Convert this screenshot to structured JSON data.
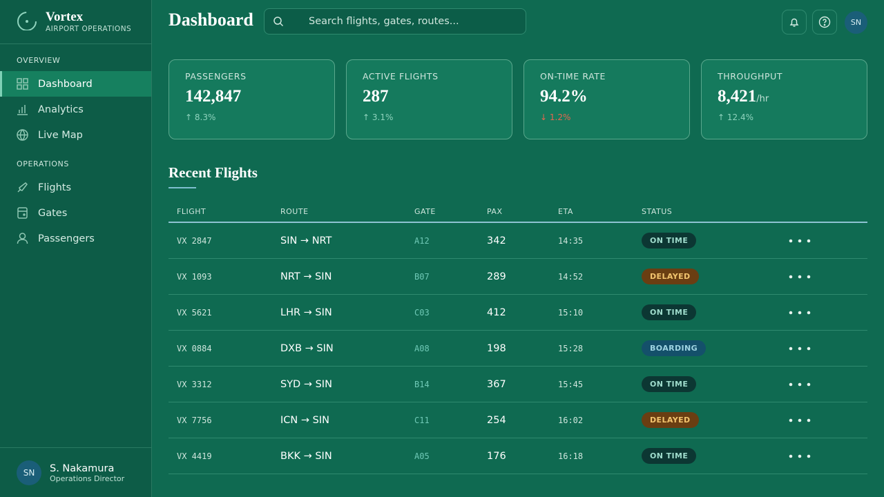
{
  "sidebar": {
    "brand": "Vortex",
    "brand_subtitle": "AIRPORT OPERATIONS",
    "sections": [
      {
        "title": "OVERVIEW",
        "items": [
          "Dashboard",
          "Analytics",
          "Live Map"
        ]
      },
      {
        "title": "OPERATIONS",
        "items": [
          "Flights",
          "Gates",
          "Passengers"
        ]
      }
    ],
    "user": {
      "initials": "SN",
      "name": "S. Nakamura",
      "role": "Operations Director"
    }
  },
  "header": {
    "title": "Dashboard",
    "search_placeholder": "Search flights, gates, routes...",
    "user_initials": "SN"
  },
  "stats": [
    {
      "label": "PASSENGERS",
      "value": "142,847",
      "change": "↑ 8.3%",
      "change_color": "#8fd3bd"
    },
    {
      "label": "ACTIVE FLIGHTS",
      "value": "287",
      "change": "↑ 3.1%",
      "change_color": "#8fd3bd"
    },
    {
      "label": "ON-TIME RATE",
      "value": "94.2%",
      "change": "↓ 1.2%",
      "change_color": "#e8664f"
    },
    {
      "label": "THROUGHPUT",
      "value": "8,421",
      "unit": "/hr",
      "change": "↑ 12.4%",
      "change_color": "#8fd3bd"
    }
  ],
  "flights": {
    "title": "Recent Flights",
    "columns": [
      "FLIGHT",
      "ROUTE",
      "GATE",
      "PAX",
      "ETA",
      "STATUS"
    ],
    "rows": [
      {
        "flight": "VX 2847",
        "route": "SIN → NRT",
        "gate": "A12",
        "pax": 342,
        "eta": "14:35",
        "status": "ON TIME",
        "status_bg": "#0c3733",
        "status_fg": "#9fdccc"
      },
      {
        "flight": "VX 1093",
        "route": "NRT → SIN",
        "gate": "B07",
        "pax": 289,
        "eta": "14:52",
        "status": "DELAYED",
        "status_bg": "#6a3e12",
        "status_fg": "#f2c46e"
      },
      {
        "flight": "VX 5621",
        "route": "LHR → SIN",
        "gate": "C03",
        "pax": 412,
        "eta": "15:10",
        "status": "ON TIME",
        "status_bg": "#0c3733",
        "status_fg": "#9fdccc"
      },
      {
        "flight": "VX 0884",
        "route": "DXB → SIN",
        "gate": "A08",
        "pax": 198,
        "eta": "15:28",
        "status": "BOARDING",
        "status_bg": "#14506a",
        "status_fg": "#9fd4e2"
      },
      {
        "flight": "VX 3312",
        "route": "SYD → SIN",
        "gate": "B14",
        "pax": 367,
        "eta": "15:45",
        "status": "ON TIME",
        "status_bg": "#0c3733",
        "status_fg": "#9fdccc"
      },
      {
        "flight": "VX 7756",
        "route": "ICN → SIN",
        "gate": "C11",
        "pax": 254,
        "eta": "16:02",
        "status": "DELAYED",
        "status_bg": "#6a3e12",
        "status_fg": "#f2c46e"
      },
      {
        "flight": "VX 4419",
        "route": "BKK → SIN",
        "gate": "A05",
        "pax": 176,
        "eta": "16:18",
        "status": "ON TIME",
        "status_bg": "#0c3733",
        "status_fg": "#9fdccc"
      }
    ]
  }
}
